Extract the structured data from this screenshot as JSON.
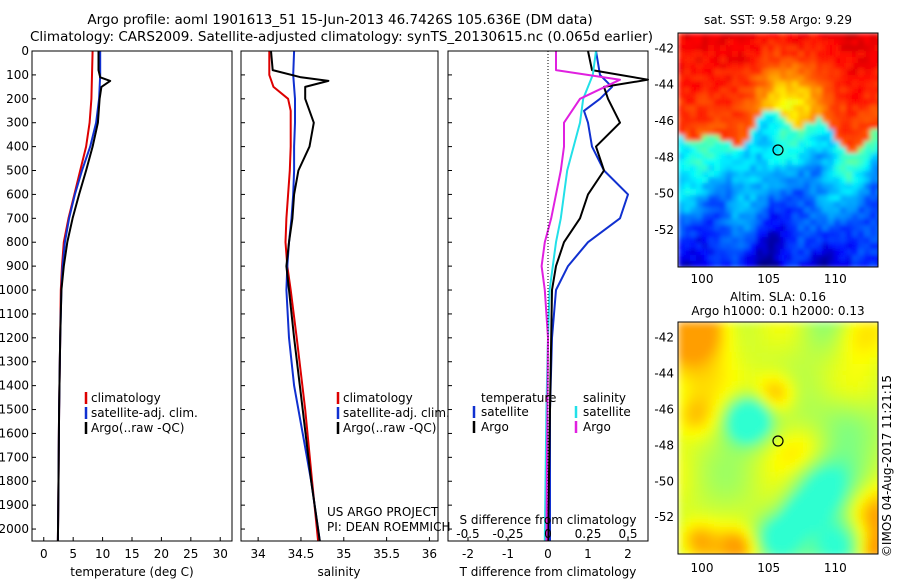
{
  "header": {
    "line1": "Argo profile: aoml 1901613_51 15-Jun-2013 46.7426S 105.636E (DM data)",
    "line2": "Climatology: CARS2009. Satellite-adjusted climatology: synTS_20130615.nc (0.065d earlier)"
  },
  "colors": {
    "climatology": "#dd0000",
    "satellite": "#1030d0",
    "argo": "#000000",
    "salinity_sat": "#22e0e8",
    "salinity_argo": "#e020e0"
  },
  "depth_ticks": [
    "0",
    "100",
    "200",
    "300",
    "400",
    "500",
    "600",
    "700",
    "800",
    "900",
    "1000",
    "1100",
    "1200",
    "1300",
    "1400",
    "1500",
    "1600",
    "1700",
    "1800",
    "1900",
    "2000"
  ],
  "temperature_panel": {
    "xlabel": "temperature (deg C)",
    "ticks": [
      "0",
      "5",
      "10",
      "15",
      "20",
      "25",
      "30"
    ],
    "legend": [
      "climatology",
      "satellite-adj. clim.",
      "Argo(..raw -QC)"
    ]
  },
  "salinity_panel": {
    "xlabel": "salinity",
    "ticks": [
      "34",
      "34.5",
      "35",
      "35.5",
      "36"
    ],
    "legend": [
      "climatology",
      "satellite-adj. clim.",
      "Argo(..raw -QC)"
    ],
    "project_line1": "US ARGO PROJECT",
    "project_line2": "PI: DEAN ROEMMICH"
  },
  "difference_panel": {
    "xlabel": "T difference from climatology",
    "s_label": "S difference from climatology",
    "t_ticks": [
      "-2",
      "-1",
      "0",
      "1",
      "2"
    ],
    "s_ticks": [
      "-0.5",
      "-0.25",
      "0",
      "0.25",
      "0.5"
    ],
    "legend_left_title": "temperature",
    "legend_right_title": "salinity",
    "legend_left": [
      "satellite",
      "Argo"
    ],
    "legend_right": [
      "satellite",
      "Argo"
    ]
  },
  "sst_map": {
    "title": "sat. SST: 9.58 Argo: 9.29",
    "yticks": [
      "-42",
      "-44",
      "-46",
      "-48",
      "-50",
      "-52"
    ],
    "xticks": [
      "100",
      "105",
      "110"
    ]
  },
  "sla_map": {
    "title1": "Altim. SLA: 0.16",
    "title2": "Argo h1000: 0.1 h2000: 0.13",
    "yticks": [
      "-42",
      "-44",
      "-46",
      "-48",
      "-50",
      "-52"
    ],
    "xticks": [
      "100",
      "105",
      "110"
    ]
  },
  "credit": "©IMOS 04-Aug-2017 11:21:15",
  "chart_data": [
    {
      "type": "line",
      "xlabel": "temperature (deg C)",
      "xlim": [
        -2,
        32
      ],
      "ylim": [
        0,
        2050
      ],
      "series": [
        {
          "name": "climatology",
          "x": [
            8.3,
            8.2,
            8.1,
            7.8,
            7.2,
            6.2,
            5.2,
            4.2,
            3.4,
            3.1,
            2.9,
            2.8,
            2.6,
            2.5,
            2.4
          ],
          "y": [
            0,
            100,
            200,
            300,
            400,
            500,
            600,
            700,
            800,
            900,
            1000,
            1200,
            1500,
            1800,
            2050
          ]
        },
        {
          "name": "satellite-adj. clim.",
          "x": [
            9.6,
            9.6,
            9.4,
            8.9,
            7.9,
            6.5,
            5.3,
            4.3,
            3.6,
            3.2,
            3.0,
            2.8,
            2.6,
            2.5,
            2.4
          ],
          "y": [
            0,
            100,
            200,
            300,
            400,
            500,
            600,
            700,
            800,
            900,
            1000,
            1200,
            1500,
            1800,
            2050
          ]
        },
        {
          "name": "Argo(..raw -QC)",
          "x": [
            9.3,
            9.3,
            9.6,
            11.3,
            9.8,
            9.5,
            9.2,
            8.3,
            7.2,
            6.0,
            4.9,
            4.0,
            3.4,
            3.0,
            2.8,
            2.6,
            2.5,
            2.4
          ],
          "y": [
            0,
            80,
            110,
            125,
            150,
            200,
            300,
            400,
            500,
            600,
            700,
            800,
            900,
            1000,
            1200,
            1500,
            1800,
            2050
          ]
        }
      ]
    },
    {
      "type": "line",
      "xlabel": "salinity",
      "xlim": [
        33.8,
        36.1
      ],
      "ylim": [
        0,
        2050
      ],
      "series": [
        {
          "name": "climatology",
          "x": [
            34.13,
            34.13,
            34.18,
            34.35,
            34.38,
            34.38,
            34.37,
            34.35,
            34.33,
            34.32,
            34.34,
            34.38,
            34.45,
            34.55,
            34.63,
            34.7
          ],
          "y": [
            0,
            100,
            150,
            200,
            250,
            400,
            500,
            600,
            700,
            800,
            900,
            1000,
            1200,
            1500,
            1800,
            2050
          ]
        },
        {
          "name": "satellite-adj. clim.",
          "x": [
            34.42,
            34.41,
            34.43,
            34.43,
            34.42,
            34.42,
            34.41,
            34.39,
            34.36,
            34.34,
            34.33,
            34.36,
            34.42,
            34.52,
            34.62,
            34.72
          ],
          "y": [
            0,
            100,
            200,
            300,
            400,
            500,
            600,
            700,
            800,
            900,
            1000,
            1200,
            1400,
            1600,
            1800,
            2050
          ]
        },
        {
          "name": "Argo(..raw -QC)",
          "x": [
            34.15,
            34.17,
            34.5,
            34.82,
            34.55,
            34.55,
            34.65,
            34.6,
            34.47,
            34.42,
            34.4,
            34.36,
            34.33,
            34.36,
            34.42,
            34.52,
            34.62,
            34.72
          ],
          "y": [
            0,
            80,
            110,
            125,
            150,
            200,
            300,
            400,
            500,
            600,
            700,
            800,
            900,
            1000,
            1200,
            1500,
            1800,
            2050
          ]
        }
      ]
    },
    {
      "type": "line",
      "xlabel": "T difference from climatology",
      "xlim": [
        -2.5,
        2.5
      ],
      "ylim": [
        0,
        2050
      ],
      "series": [
        {
          "name": "temperature satellite",
          "x": [
            1.2,
            1.3,
            1.6,
            1.3,
            0.9,
            1.0,
            1.1,
            1.4,
            2.0,
            1.8,
            1.0,
            0.5,
            0.2,
            0.1,
            0.05,
            0.05
          ],
          "y": [
            0,
            100,
            150,
            200,
            250,
            300,
            400,
            500,
            600,
            700,
            800,
            900,
            1000,
            1200,
            1500,
            2050
          ]
        },
        {
          "name": "temperature Argo",
          "x": [
            1.0,
            1.1,
            2.5,
            1.4,
            1.5,
            1.8,
            1.2,
            1.4,
            1.0,
            0.8,
            0.4,
            0.2,
            0.1,
            0.05,
            0.0
          ],
          "y": [
            0,
            80,
            120,
            150,
            200,
            300,
            400,
            500,
            600,
            700,
            800,
            900,
            1000,
            1500,
            2050
          ]
        }
      ]
    },
    {
      "type": "line",
      "xlabel": "S difference from climatology",
      "xlim": [
        -0.625,
        0.625
      ],
      "ylim": [
        0,
        2050
      ],
      "series": [
        {
          "name": "salinity satellite",
          "x": [
            0.3,
            0.28,
            0.22,
            0.2,
            0.16,
            0.12,
            0.1,
            0.08,
            0.05,
            0.03,
            0.01,
            0.0,
            -0.01,
            -0.02
          ],
          "y": [
            0,
            100,
            200,
            300,
            400,
            500,
            600,
            700,
            800,
            900,
            1000,
            1200,
            1500,
            2050
          ]
        },
        {
          "name": "salinity Argo",
          "x": [
            0.05,
            0.05,
            0.45,
            0.2,
            0.1,
            0.1,
            0.08,
            0.05,
            0.02,
            -0.02,
            -0.04,
            -0.02,
            0.0,
            -0.01
          ],
          "y": [
            0,
            80,
            120,
            200,
            300,
            400,
            500,
            600,
            700,
            800,
            900,
            1000,
            1200,
            2050
          ]
        }
      ]
    }
  ]
}
